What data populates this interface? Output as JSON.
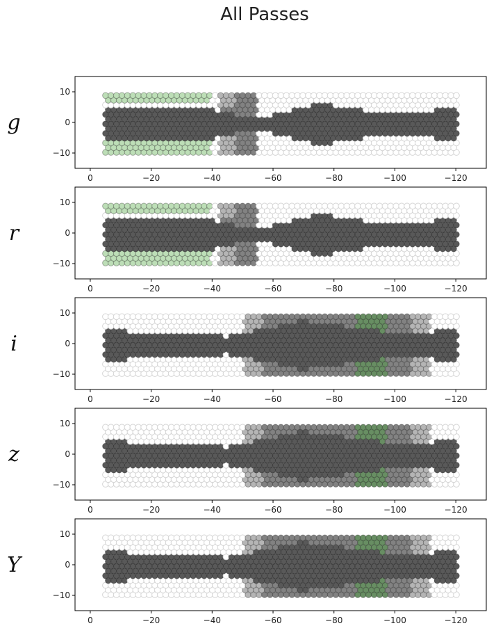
{
  "chart_data": {
    "type": "scatter",
    "title": "All Passes",
    "xlim": [
      5,
      -130
    ],
    "ylim": [
      -15,
      15
    ],
    "xticks": [
      0,
      -20,
      -40,
      -60,
      -80,
      -100,
      -120
    ],
    "xtick_labels": [
      "0",
      "−20",
      "−40",
      "−60",
      "−80",
      "−100",
      "−120"
    ],
    "yticks": [
      10,
      0,
      -10
    ],
    "ytick_labels": [
      "10",
      "0",
      "−10"
    ],
    "colors": {
      "empty": "#ffffff",
      "dark": "#3c3c3c",
      "mid": "#6c6c6c",
      "light": "#a8a8a8",
      "green_light": "#b2d8aa",
      "green_dark": "#4d7a48"
    },
    "panels": [
      {
        "label": "g",
        "band_halfwidth": [
          [
            -5,
            6
          ],
          [
            -40,
            5
          ],
          [
            -48,
            3
          ],
          [
            -60,
            3
          ],
          [
            -75,
            7
          ],
          [
            -85,
            5
          ],
          [
            -100,
            4
          ],
          [
            -120,
            5
          ]
        ],
        "regions": [
          {
            "x": [
              -5,
              -40
            ],
            "absy": [
              6,
              10.5
            ],
            "color": "green_light"
          },
          {
            "x": [
              -42,
              -55
            ],
            "absy": [
              0,
              10.5
            ],
            "color": "mid"
          },
          {
            "x": [
              -42,
              -48
            ],
            "absy": [
              5,
              10.5
            ],
            "color": "light"
          }
        ]
      },
      {
        "label": "r",
        "band_halfwidth": [
          [
            -5,
            6
          ],
          [
            -40,
            5
          ],
          [
            -48,
            3
          ],
          [
            -60,
            3
          ],
          [
            -75,
            7
          ],
          [
            -85,
            5
          ],
          [
            -100,
            4
          ],
          [
            -120,
            5
          ]
        ],
        "regions": [
          {
            "x": [
              -5,
              -40
            ],
            "absy": [
              6,
              10.5
            ],
            "color": "green_light"
          },
          {
            "x": [
              -42,
              -55
            ],
            "absy": [
              0,
              10.5
            ],
            "color": "mid"
          },
          {
            "x": [
              -42,
              -48
            ],
            "absy": [
              5,
              10.5
            ],
            "color": "light"
          }
        ]
      },
      {
        "label": "i",
        "band_halfwidth": [
          [
            -5,
            5
          ],
          [
            -45,
            3
          ],
          [
            -55,
            5
          ],
          [
            -70,
            8
          ],
          [
            -85,
            6
          ],
          [
            -100,
            4
          ],
          [
            -120,
            5
          ]
        ],
        "regions": [
          {
            "x": [
              -50,
              -112
            ],
            "absy": [
              0,
              10.5
            ],
            "color": "mid"
          },
          {
            "x": [
              -50,
              -57
            ],
            "absy": [
              0,
              10.5
            ],
            "color": "light"
          },
          {
            "x": [
              -105,
              -112
            ],
            "absy": [
              0,
              10.5
            ],
            "color": "light"
          },
          {
            "x": [
              -87,
              -97
            ],
            "absy": [
              4,
              10.5
            ],
            "color": "green_dark"
          }
        ]
      },
      {
        "label": "z",
        "band_halfwidth": [
          [
            -5,
            5
          ],
          [
            -45,
            3
          ],
          [
            -55,
            5
          ],
          [
            -70,
            8
          ],
          [
            -85,
            6
          ],
          [
            -100,
            4
          ],
          [
            -120,
            5
          ]
        ],
        "regions": [
          {
            "x": [
              -50,
              -112
            ],
            "absy": [
              0,
              10.5
            ],
            "color": "mid"
          },
          {
            "x": [
              -50,
              -57
            ],
            "absy": [
              0,
              10.5
            ],
            "color": "light"
          },
          {
            "x": [
              -105,
              -112
            ],
            "absy": [
              0,
              10.5
            ],
            "color": "light"
          },
          {
            "x": [
              -87,
              -97
            ],
            "absy": [
              4,
              10.5
            ],
            "color": "green_dark"
          }
        ]
      },
      {
        "label": "Y",
        "band_halfwidth": [
          [
            -5,
            5
          ],
          [
            -45,
            3
          ],
          [
            -55,
            5
          ],
          [
            -70,
            8
          ],
          [
            -85,
            6
          ],
          [
            -100,
            4
          ],
          [
            -120,
            5
          ]
        ],
        "regions": [
          {
            "x": [
              -50,
              -112
            ],
            "absy": [
              0,
              10.5
            ],
            "color": "mid"
          },
          {
            "x": [
              -50,
              -57
            ],
            "absy": [
              0,
              10.5
            ],
            "color": "light"
          },
          {
            "x": [
              -105,
              -112
            ],
            "absy": [
              0,
              10.5
            ],
            "color": "light"
          },
          {
            "x": [
              -87,
              -97
            ],
            "absy": [
              4,
              10.5
            ],
            "color": "green_dark"
          }
        ]
      }
    ]
  }
}
